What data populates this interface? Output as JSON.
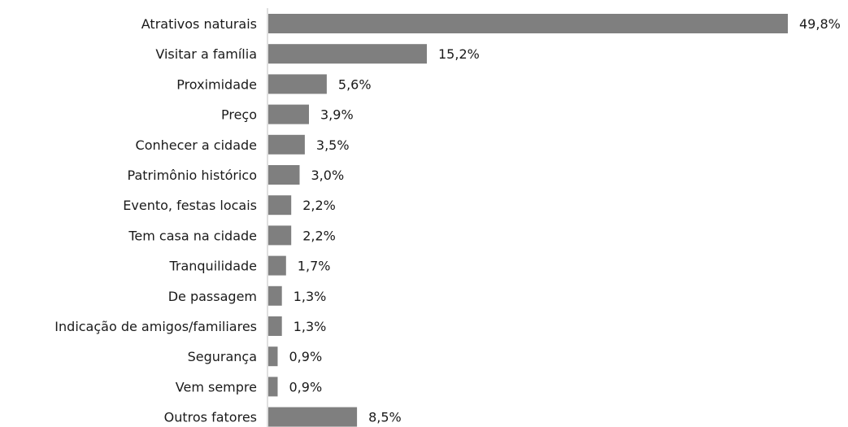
{
  "chart_data": {
    "type": "bar",
    "orientation": "horizontal",
    "categories": [
      "Atrativos naturais",
      "Visitar a família",
      "Proximidade",
      "Preço",
      "Conhecer a cidade",
      "Patrimônio histórico",
      "Evento, festas locais",
      "Tem casa na cidade",
      "Tranquilidade",
      "De passagem ",
      "Indicação de amigos/familiares",
      "Segurança",
      "Vem sempre",
      "Outros fatores"
    ],
    "values": [
      49.8,
      15.2,
      5.6,
      3.9,
      3.5,
      3.0,
      2.2,
      2.2,
      1.7,
      1.3,
      1.3,
      0.9,
      0.9,
      8.5
    ],
    "value_labels": [
      "49,8%",
      "15,2%",
      "5,6%",
      "3,9%",
      "3,5%",
      "3,0%",
      "2,2%",
      "2,2%",
      "1,7%",
      "1,3%",
      "1,3%",
      "0,9%",
      "0,9%",
      "8,5%"
    ],
    "unit": "%",
    "title": "",
    "xlabel": "",
    "ylabel": "",
    "xlim": [
      0,
      49.8
    ],
    "grid": false,
    "legend": "none",
    "bar_color": "#7f7f7f"
  }
}
